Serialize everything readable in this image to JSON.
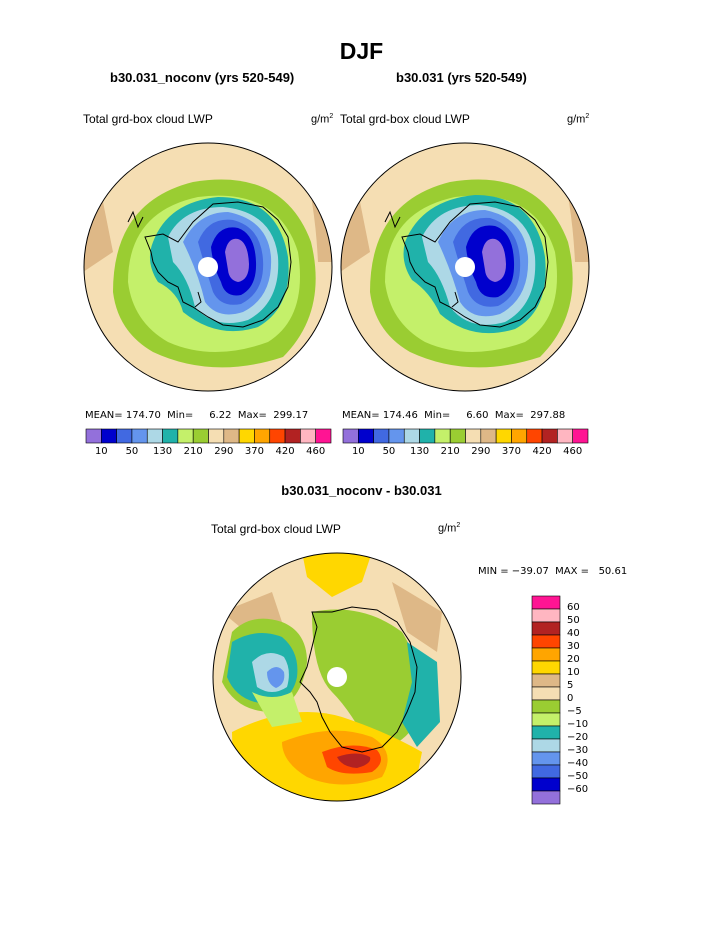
{
  "figure": {
    "season": "DJF",
    "panels": [
      {
        "case": "b30.031_noconv (yrs 520-549)",
        "variable": "Total grd-box cloud LWP",
        "units": "g/m",
        "units_sup": "2",
        "stats": "MEAN= 174.70  Min=     6.22  Max=  299.17"
      },
      {
        "case": "b30.031 (yrs 520-549)",
        "variable": "Total grd-box cloud LWP",
        "units": "g/m",
        "units_sup": "2",
        "stats": "MEAN= 174.46  Min=     6.60  Max=  297.88"
      }
    ],
    "colorbar": {
      "labels": [
        "10",
        "50",
        "130",
        "210",
        "290",
        "370",
        "420",
        "460"
      ],
      "colors": [
        "#9370db",
        "#0000cd",
        "#4169e1",
        "#6495ed",
        "#add8e6",
        "#20b2aa",
        "#c4f06a",
        "#9acd32",
        "#f5deb3",
        "#deb887",
        "#ffd700",
        "#ffa500",
        "#ff4500",
        "#b22222",
        "#ffb6c1",
        "#ff1493"
      ]
    },
    "difference": {
      "title": "b30.031_noconv - b30.031",
      "variable": "Total grd-box cloud LWP",
      "units": "g/m",
      "units_sup": "2",
      "stats": "MIN = −39.07  MAX =   50.61",
      "levels": [
        "60",
        "50",
        "40",
        "30",
        "20",
        "10",
        "5",
        "0",
        "−5",
        "−10",
        "−20",
        "−30",
        "−40",
        "−50",
        "−60"
      ],
      "colors": [
        "#ff1493",
        "#ffb6c1",
        "#b22222",
        "#ff4500",
        "#ffa500",
        "#ffd700",
        "#deb887",
        "#f5deb3",
        "#9acd32",
        "#c4f06a",
        "#20b2aa",
        "#add8e6",
        "#6495ed",
        "#4169e1",
        "#0000cd",
        "#9370db"
      ]
    }
  }
}
